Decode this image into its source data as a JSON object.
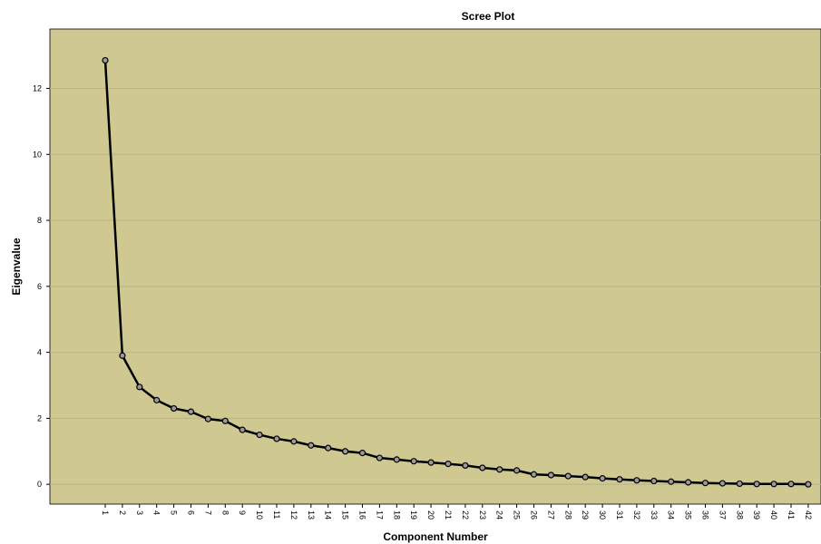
{
  "chart_data": {
    "type": "line",
    "title": "Scree Plot",
    "xlabel": "Component Number",
    "ylabel": "Eigenvalue",
    "x": [
      1,
      2,
      3,
      4,
      5,
      6,
      7,
      8,
      9,
      10,
      11,
      12,
      13,
      14,
      15,
      16,
      17,
      18,
      19,
      20,
      21,
      22,
      23,
      24,
      25,
      26,
      27,
      28,
      29,
      30,
      31,
      32,
      33,
      34,
      35,
      36,
      37,
      38,
      39,
      40,
      41,
      42
    ],
    "values": [
      12.85,
      3.9,
      2.95,
      2.55,
      2.3,
      2.2,
      1.98,
      1.92,
      1.65,
      1.5,
      1.38,
      1.3,
      1.18,
      1.1,
      1.0,
      0.95,
      0.8,
      0.75,
      0.7,
      0.66,
      0.62,
      0.57,
      0.5,
      0.45,
      0.42,
      0.3,
      0.28,
      0.25,
      0.22,
      0.18,
      0.15,
      0.12,
      0.1,
      0.08,
      0.06,
      0.04,
      0.03,
      0.02,
      0.01,
      0.01,
      0.01,
      0.0
    ],
    "yticks": [
      0,
      2,
      4,
      6,
      8,
      10,
      12
    ],
    "ylim": [
      -0.6,
      13.8
    ],
    "grid": true,
    "colors": {
      "plot_background": "#cfc891",
      "gridline": "#b8b38a",
      "line": "#000000",
      "marker_fill": "#9a9a9a"
    }
  }
}
